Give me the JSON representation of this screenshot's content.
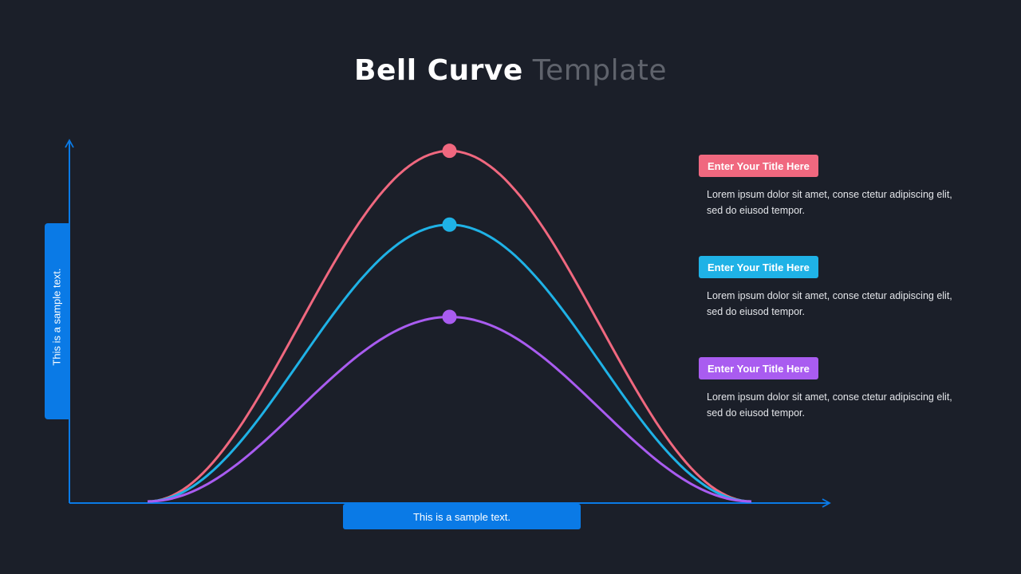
{
  "header": {
    "title_bold": "Bell Curve",
    "title_light": "Template"
  },
  "axes": {
    "y_label": "This is a sample text.",
    "x_label": "This is a sample text."
  },
  "colors": {
    "background": "#1b1f29",
    "axis": "#0a7ae6"
  },
  "legend": [
    {
      "title": "Enter Your Title Here",
      "text": "Lorem ipsum dolor sit amet, conse ctetur adipiscing elit, sed do eiusod tempor.",
      "color": "#f0687f"
    },
    {
      "title": "Enter Your Title Here",
      "text": "Lorem ipsum dolor sit amet, conse ctetur adipiscing elit, sed do eiusod tempor.",
      "color": "#1fb2e6"
    },
    {
      "title": "Enter Your Title Here",
      "text": "Lorem ipsum dolor sit amet, conse ctetur adipiscing elit, sed do eiusod tempor.",
      "color": "#a95cf0"
    }
  ],
  "chart_data": {
    "type": "line",
    "x_range": [
      0,
      1
    ],
    "y_range": [
      0,
      1
    ],
    "grid": false,
    "series": [
      {
        "peak": 0.95,
        "color": "#f0687f"
      },
      {
        "peak": 0.75,
        "color": "#1fb2e6"
      },
      {
        "peak": 0.5,
        "color": "#a95cf0"
      }
    ]
  }
}
